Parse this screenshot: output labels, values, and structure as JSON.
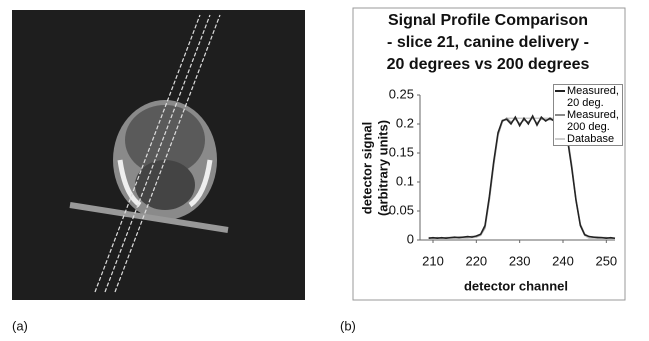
{
  "panel_labels": [
    "(a)",
    "(b)"
  ],
  "chart_data": {
    "type": "line",
    "title": [
      "Signal Profile Comparison",
      "- slice 21, canine delivery -",
      "20 degrees vs 200 degrees"
    ],
    "xlabel": "detector channel",
    "ylabel": [
      "detector signal",
      "(arbitrary units)"
    ],
    "x": [
      209,
      210,
      211,
      212,
      213,
      214,
      215,
      216,
      217,
      218,
      219,
      220,
      221,
      222,
      223,
      224,
      225,
      226,
      227,
      228,
      229,
      230,
      231,
      232,
      233,
      234,
      235,
      236,
      237,
      238,
      239,
      240,
      241,
      242,
      243,
      244,
      245,
      246,
      247,
      248,
      249,
      250,
      251,
      252
    ],
    "series": [
      {
        "name": "Measured, 20 deg.",
        "color": "#222222",
        "values": [
          0.003,
          0.004,
          0.003,
          0.004,
          0.003,
          0.004,
          0.005,
          0.004,
          0.005,
          0.006,
          0.005,
          0.007,
          0.01,
          0.025,
          0.075,
          0.135,
          0.185,
          0.206,
          0.208,
          0.2,
          0.212,
          0.197,
          0.21,
          0.2,
          0.214,
          0.198,
          0.212,
          0.205,
          0.21,
          0.205,
          0.208,
          0.2,
          0.175,
          0.125,
          0.068,
          0.025,
          0.009,
          0.006,
          0.005,
          0.004,
          0.004,
          0.003,
          0.004,
          0.003
        ]
      },
      {
        "name": "Measured, 200 deg.",
        "color": "#888888",
        "values": [
          0.004,
          0.003,
          0.004,
          0.003,
          0.004,
          0.004,
          0.004,
          0.005,
          0.005,
          0.005,
          0.006,
          0.006,
          0.009,
          0.022,
          0.07,
          0.13,
          0.182,
          0.204,
          0.21,
          0.203,
          0.209,
          0.2,
          0.207,
          0.203,
          0.211,
          0.201,
          0.209,
          0.207,
          0.208,
          0.206,
          0.206,
          0.202,
          0.178,
          0.128,
          0.07,
          0.027,
          0.01,
          0.006,
          0.005,
          0.005,
          0.004,
          0.004,
          0.003,
          0.003
        ]
      },
      {
        "name": "Database",
        "color": "#cccccc",
        "values": [
          0.003,
          0.003,
          0.003,
          0.003,
          0.003,
          0.003,
          0.003,
          0.003,
          0.003,
          0.003,
          0.004,
          0.005,
          0.008,
          0.02,
          0.07,
          0.13,
          0.18,
          0.205,
          0.21,
          0.21,
          0.21,
          0.21,
          0.21,
          0.21,
          0.21,
          0.21,
          0.21,
          0.21,
          0.21,
          0.21,
          0.21,
          0.205,
          0.18,
          0.13,
          0.07,
          0.025,
          0.008,
          0.003,
          0.003,
          0.003,
          0.003,
          0.003,
          0.003,
          0.003
        ]
      }
    ],
    "xlim": [
      207,
      252
    ],
    "xticks": [
      210,
      220,
      230,
      240,
      250
    ],
    "ylim": [
      0,
      0.25
    ],
    "yticks": [
      0,
      0.05,
      0.1,
      0.15,
      0.2,
      0.25
    ]
  }
}
